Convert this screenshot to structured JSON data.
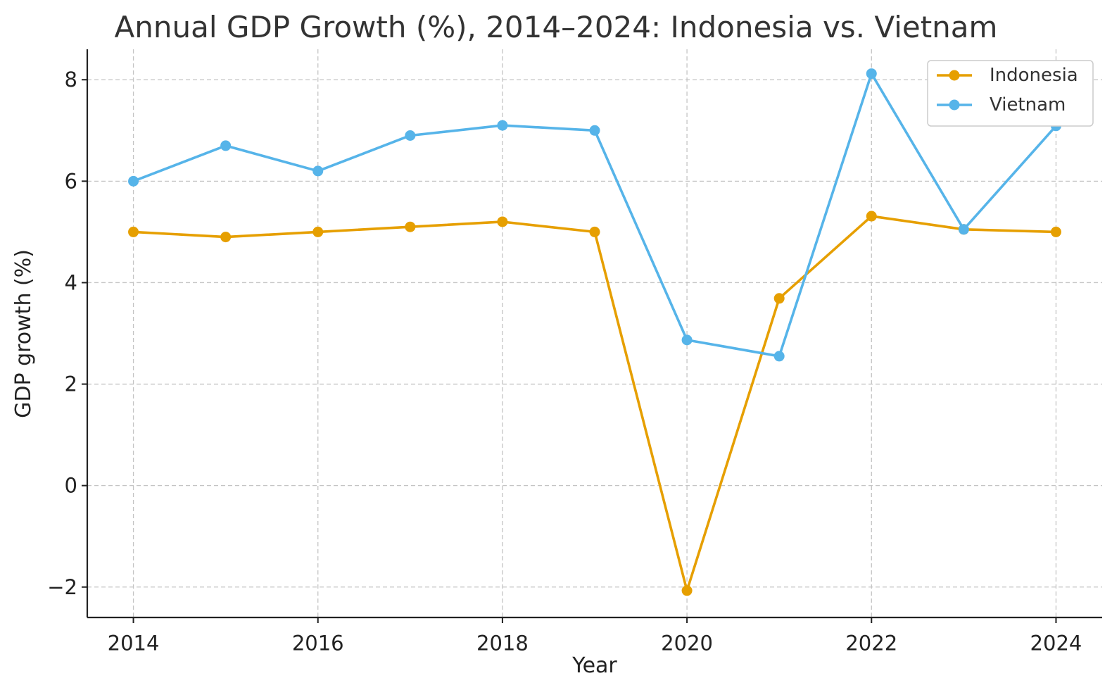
{
  "chart_data": {
    "type": "line",
    "title": "Annual GDP Growth (%), 2014–2024: Indonesia vs. Vietnam",
    "xlabel": "Year",
    "ylabel": "GDP growth (%)",
    "x": [
      2014,
      2015,
      2016,
      2017,
      2018,
      2019,
      2020,
      2021,
      2022,
      2023,
      2024
    ],
    "xlim": [
      2013.5,
      2024.5
    ],
    "ylim": [
      -2.6,
      8.6
    ],
    "xticks": [
      2014,
      2016,
      2018,
      2020,
      2022,
      2024
    ],
    "xtick_labels": [
      "2014",
      "2016",
      "2018",
      "2020",
      "2022",
      "2024"
    ],
    "yticks": [
      -2,
      0,
      2,
      4,
      6,
      8
    ],
    "ytick_labels": [
      "−2",
      "0",
      "2",
      "4",
      "6",
      "8"
    ],
    "grid": true,
    "legend_position": "top-right",
    "series": [
      {
        "name": "Indonesia",
        "color": "#E69F00",
        "values": [
          5.0,
          4.9,
          5.0,
          5.1,
          5.2,
          5.0,
          -2.07,
          3.69,
          5.31,
          5.05,
          5.0
        ]
      },
      {
        "name": "Vietnam",
        "color": "#56B4E9",
        "values": [
          6.0,
          6.7,
          6.2,
          6.9,
          7.1,
          7.0,
          2.87,
          2.55,
          8.12,
          5.05,
          7.09
        ]
      }
    ]
  }
}
